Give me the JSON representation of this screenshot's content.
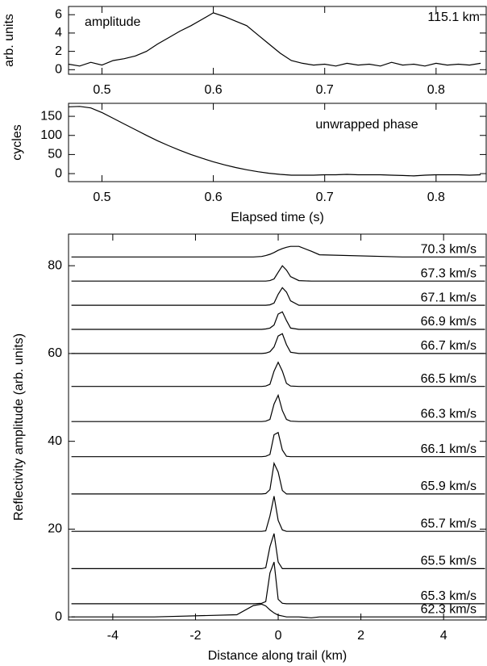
{
  "chart_data": [
    {
      "type": "line",
      "ylabel": "arb. units",
      "annotations": [
        "amplitude",
        "115.1 km"
      ],
      "color": "#000000",
      "xlim": [
        0.47,
        0.845
      ],
      "xticks": [
        0.5,
        0.6,
        0.7,
        0.8
      ],
      "ylim": [
        -0.5,
        6.9
      ],
      "yticks": [
        0,
        2,
        4,
        6
      ],
      "x": [
        0.47,
        0.48,
        0.49,
        0.5,
        0.51,
        0.52,
        0.53,
        0.54,
        0.55,
        0.56,
        0.57,
        0.58,
        0.59,
        0.6,
        0.61,
        0.62,
        0.63,
        0.64,
        0.65,
        0.66,
        0.67,
        0.68,
        0.69,
        0.7,
        0.71,
        0.72,
        0.73,
        0.74,
        0.75,
        0.76,
        0.77,
        0.78,
        0.79,
        0.8,
        0.81,
        0.82,
        0.83,
        0.84
      ],
      "values": [
        0.6,
        0.4,
        0.8,
        0.5,
        1.0,
        1.2,
        1.5,
        2.0,
        2.8,
        3.5,
        4.2,
        4.8,
        5.5,
        6.2,
        5.8,
        5.3,
        4.8,
        3.8,
        2.8,
        1.8,
        1.0,
        0.7,
        0.5,
        0.6,
        0.4,
        0.7,
        0.5,
        0.6,
        0.4,
        0.8,
        0.5,
        0.6,
        0.4,
        0.7,
        0.5,
        0.6,
        0.5,
        0.7
      ]
    },
    {
      "type": "line",
      "ylabel": "cycles",
      "xlabel": "Elapsed time (s)",
      "annotations": [
        "unwrapped phase"
      ],
      "color": "#000000",
      "xlim": [
        0.47,
        0.845
      ],
      "xticks": [
        0.5,
        0.6,
        0.7,
        0.8
      ],
      "ylim": [
        -21,
        184
      ],
      "yticks": [
        0,
        50,
        100,
        150
      ],
      "x": [
        0.47,
        0.48,
        0.49,
        0.5,
        0.51,
        0.52,
        0.53,
        0.54,
        0.55,
        0.56,
        0.57,
        0.58,
        0.59,
        0.6,
        0.61,
        0.62,
        0.63,
        0.64,
        0.65,
        0.66,
        0.67,
        0.68,
        0.69,
        0.7,
        0.71,
        0.72,
        0.73,
        0.74,
        0.75,
        0.76,
        0.77,
        0.78,
        0.79,
        0.8,
        0.81,
        0.82,
        0.83,
        0.84
      ],
      "values": [
        175,
        176,
        172,
        160,
        145,
        130,
        115,
        100,
        86,
        73,
        61,
        50,
        40,
        31,
        23,
        16,
        10,
        5,
        1,
        -2,
        -4,
        -4,
        -4,
        -3,
        -3,
        -2,
        -3,
        -3,
        -3,
        -4,
        -5,
        -6,
        -4,
        -3,
        -3,
        -3,
        -4,
        -3
      ]
    },
    {
      "type": "line",
      "ylabel": "Reflectivity amplitude (arb. units)",
      "xlabel": "Distance along trail (km)",
      "xlim": [
        -5.07,
        5.03
      ],
      "xticks": [
        -4,
        -2,
        0,
        2,
        4
      ],
      "ylim": [
        -0.7,
        87.2
      ],
      "yticks": [
        0,
        20,
        40,
        60,
        80
      ],
      "x": [
        -5,
        -3,
        -1,
        -0.6,
        -0.4,
        -0.3,
        -0.2,
        -0.1,
        0,
        0.1,
        0.2,
        0.3,
        0.5,
        0.8,
        1,
        3,
        5
      ],
      "series": [
        {
          "name": "62.3 km/s",
          "color": "#000000",
          "values": [
            0,
            0,
            0.5,
            2.6,
            2.9,
            2.5,
            1.6,
            0.9,
            0.4,
            0.2,
            0,
            0,
            0,
            -0.2,
            0,
            0,
            0
          ]
        },
        {
          "name": "65.3 km/s",
          "color": "#000000",
          "values": [
            3,
            3,
            3,
            3,
            3.1,
            3.5,
            10,
            12.5,
            4,
            3.1,
            3,
            3,
            3,
            3,
            3,
            3,
            3
          ]
        },
        {
          "name": "65.5 km/s",
          "color": "#000000",
          "values": [
            11,
            11,
            11,
            11,
            11,
            11.2,
            16,
            19,
            12.5,
            11,
            11,
            11,
            11,
            11,
            11,
            11,
            11
          ]
        },
        {
          "name": "65.7 km/s",
          "color": "#000000",
          "values": [
            19.5,
            19.5,
            19.5,
            19.5,
            19.5,
            19.6,
            23,
            27.5,
            22,
            19.8,
            19.5,
            19.5,
            19.5,
            19.5,
            19.5,
            19.5,
            19.5
          ]
        },
        {
          "name": "65.9 km/s",
          "color": "#000000",
          "values": [
            28,
            28,
            28,
            28,
            28,
            28.1,
            29,
            35,
            33,
            28.8,
            28,
            28,
            28,
            28,
            28,
            28,
            28
          ]
        },
        {
          "name": "66.1 km/s",
          "color": "#000000",
          "values": [
            36.5,
            36.5,
            36.5,
            36.5,
            36.5,
            36.6,
            37,
            41.5,
            42,
            38,
            36.6,
            36.5,
            36.5,
            36.5,
            36.5,
            36.5,
            36.5
          ]
        },
        {
          "name": "66.3 km/s",
          "color": "#000000",
          "values": [
            44.5,
            44.5,
            44.5,
            44.5,
            44.5,
            44.6,
            45,
            48.5,
            50.5,
            47,
            45,
            44.6,
            44.5,
            44.5,
            44.5,
            44.5,
            44.5
          ]
        },
        {
          "name": "66.5 km/s",
          "color": "#000000",
          "values": [
            52.5,
            52.5,
            52.5,
            52.5,
            52.5,
            52.6,
            53,
            56,
            58,
            56,
            53.2,
            52.6,
            52.5,
            52.5,
            52.5,
            52.5,
            52.5
          ]
        },
        {
          "name": "66.7 km/s",
          "color": "#000000",
          "values": [
            60,
            60,
            60,
            60,
            60,
            60.1,
            60.4,
            61.5,
            64,
            64.5,
            62,
            60.3,
            60,
            60,
            60,
            60,
            60
          ]
        },
        {
          "name": "66.9 km/s",
          "color": "#000000",
          "values": [
            65.5,
            65.5,
            65.5,
            65.5,
            65.5,
            65.6,
            65.8,
            66.5,
            69,
            69.5,
            67.5,
            65.8,
            65.5,
            65.5,
            65.5,
            65.5,
            65.5
          ]
        },
        {
          "name": "67.1 km/s",
          "color": "#000000",
          "values": [
            71,
            71,
            71,
            71,
            71,
            71,
            71.1,
            71.5,
            73.5,
            75,
            74,
            72,
            71,
            71,
            71,
            71,
            71
          ]
        },
        {
          "name": "67.3 km/s",
          "color": "#000000",
          "values": [
            76.5,
            76.5,
            76.5,
            76.5,
            76.5,
            76.5,
            76.6,
            77,
            78.5,
            80,
            79,
            77.5,
            76.6,
            76.5,
            76.5,
            76.5,
            76.5
          ]
        },
        {
          "name": "70.3 km/s",
          "color": "#000000",
          "values": [
            82,
            82,
            82,
            82,
            82.1,
            82.3,
            82.6,
            83,
            83.5,
            83.9,
            84.2,
            84.4,
            84.4,
            83.3,
            82.5,
            82,
            82
          ]
        }
      ]
    }
  ]
}
